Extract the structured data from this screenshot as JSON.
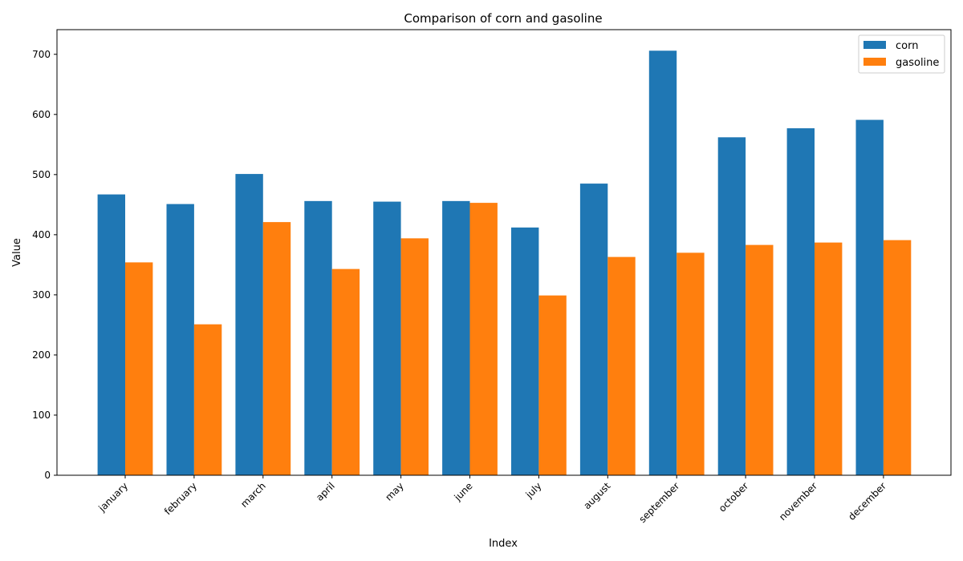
{
  "chart_data": {
    "type": "bar",
    "title": "Comparison of corn and gasoline",
    "xlabel": "Index",
    "ylabel": "Value",
    "categories": [
      "january",
      "february",
      "march",
      "april",
      "may",
      "june",
      "july",
      "august",
      "september",
      "october",
      "november",
      "december"
    ],
    "series": [
      {
        "name": "corn",
        "color": "#1f77b4",
        "values": [
          467,
          451,
          501,
          456,
          455,
          456,
          412,
          485,
          706,
          562,
          577,
          591
        ]
      },
      {
        "name": "gasoline",
        "color": "#ff7f0e",
        "values": [
          354,
          251,
          421,
          343,
          394,
          453,
          299,
          363,
          370,
          383,
          387,
          391
        ]
      }
    ],
    "ylim": [
      0,
      741
    ],
    "yticks": [
      0,
      100,
      200,
      300,
      400,
      500,
      600,
      700
    ],
    "grid": false,
    "legend_position": "top-right"
  }
}
